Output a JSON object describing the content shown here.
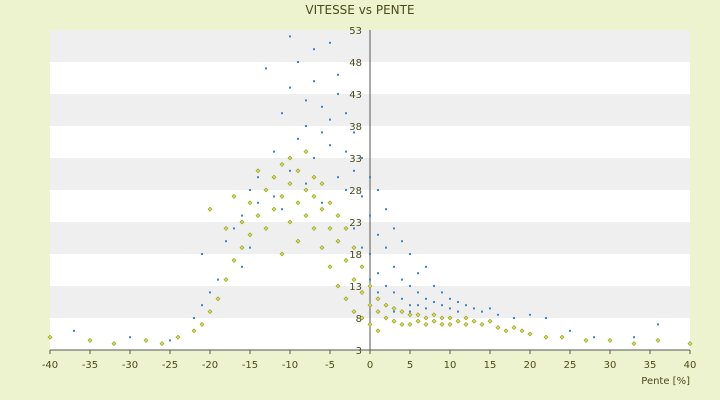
{
  "chart_data": {
    "type": "scatter",
    "title": "VITESSE vs PENTE",
    "xlabel": "Pente [%]",
    "ylabel": "",
    "xlim": [
      -40,
      40
    ],
    "ylim": [
      3,
      53
    ],
    "x_ticks": [
      -40,
      -35,
      -30,
      -25,
      -20,
      -15,
      -10,
      -5,
      0,
      5,
      10,
      15,
      20,
      25,
      30,
      35,
      40
    ],
    "y_ticks": [
      3,
      8,
      13,
      18,
      23,
      28,
      33,
      38,
      43,
      48,
      53
    ],
    "grid": "horizontal bands",
    "legend": "none",
    "series": [
      {
        "color": "#3b86c8",
        "marker": "dot",
        "points": [
          [
            -37,
            6
          ],
          [
            -30,
            5
          ],
          [
            -25,
            4.5
          ],
          [
            -22,
            8
          ],
          [
            -21,
            10
          ],
          [
            -21,
            18
          ],
          [
            -20,
            12
          ],
          [
            -19,
            14
          ],
          [
            -18,
            20
          ],
          [
            -17,
            22
          ],
          [
            -16,
            16
          ],
          [
            -16,
            24
          ],
          [
            -15,
            19
          ],
          [
            -15,
            28
          ],
          [
            -14,
            26
          ],
          [
            -14,
            30
          ],
          [
            -13,
            22
          ],
          [
            -13,
            47
          ],
          [
            -12,
            34
          ],
          [
            -12,
            27
          ],
          [
            -11,
            25
          ],
          [
            -11,
            40
          ],
          [
            -10,
            31
          ],
          [
            -10,
            52
          ],
          [
            -10,
            44
          ],
          [
            -9,
            36
          ],
          [
            -9,
            48
          ],
          [
            -8,
            38
          ],
          [
            -8,
            42
          ],
          [
            -8,
            29
          ],
          [
            -7,
            45
          ],
          [
            -7,
            33
          ],
          [
            -7,
            50
          ],
          [
            -6,
            37
          ],
          [
            -6,
            41
          ],
          [
            -6,
            26
          ],
          [
            -5,
            51
          ],
          [
            -5,
            39
          ],
          [
            -5,
            35
          ],
          [
            -4,
            46
          ],
          [
            -4,
            30
          ],
          [
            -4,
            43
          ],
          [
            -3,
            40
          ],
          [
            -3,
            34
          ],
          [
            -3,
            28
          ],
          [
            -2,
            37
          ],
          [
            -2,
            31
          ],
          [
            -2,
            22
          ],
          [
            -1,
            33
          ],
          [
            -1,
            27
          ],
          [
            -1,
            19
          ],
          [
            0,
            30
          ],
          [
            0,
            24
          ],
          [
            0,
            18
          ],
          [
            0,
            14
          ],
          [
            1,
            28
          ],
          [
            1,
            21
          ],
          [
            1,
            15
          ],
          [
            1,
            12
          ],
          [
            2,
            25
          ],
          [
            2,
            19
          ],
          [
            2,
            13
          ],
          [
            2,
            10
          ],
          [
            3,
            22
          ],
          [
            3,
            16
          ],
          [
            3,
            12
          ],
          [
            3,
            9
          ],
          [
            4,
            20
          ],
          [
            4,
            14
          ],
          [
            4,
            11
          ],
          [
            5,
            18
          ],
          [
            5,
            13
          ],
          [
            5,
            10
          ],
          [
            5,
            9
          ],
          [
            6,
            15
          ],
          [
            6,
            12
          ],
          [
            6,
            10
          ],
          [
            7,
            16
          ],
          [
            7,
            11
          ],
          [
            7,
            9.5
          ],
          [
            8,
            13
          ],
          [
            8,
            10.5
          ],
          [
            9,
            12
          ],
          [
            9,
            10
          ],
          [
            10,
            11
          ],
          [
            10,
            9.5
          ],
          [
            11,
            10.5
          ],
          [
            11,
            9
          ],
          [
            12,
            10
          ],
          [
            13,
            9.5
          ],
          [
            14,
            9
          ],
          [
            15,
            9.5
          ],
          [
            16,
            8.5
          ],
          [
            18,
            8
          ],
          [
            20,
            8.5
          ],
          [
            22,
            8
          ],
          [
            25,
            6
          ],
          [
            28,
            5
          ],
          [
            33,
            5
          ],
          [
            36,
            7
          ]
        ]
      },
      {
        "color": "#8c9a10",
        "marker": "diamond",
        "points": [
          [
            -40,
            5
          ],
          [
            -35,
            4.5
          ],
          [
            -32,
            4
          ],
          [
            -28,
            4.5
          ],
          [
            -26,
            4
          ],
          [
            -24,
            5
          ],
          [
            -22,
            6
          ],
          [
            -21,
            7
          ],
          [
            -20,
            9
          ],
          [
            -20,
            25
          ],
          [
            -19,
            11
          ],
          [
            -18,
            14
          ],
          [
            -18,
            22
          ],
          [
            -17,
            17
          ],
          [
            -17,
            27
          ],
          [
            -16,
            19
          ],
          [
            -16,
            23
          ],
          [
            -15,
            21
          ],
          [
            -15,
            26
          ],
          [
            -14,
            24
          ],
          [
            -14,
            31
          ],
          [
            -13,
            28
          ],
          [
            -13,
            22
          ],
          [
            -12,
            30
          ],
          [
            -12,
            25
          ],
          [
            -11,
            32
          ],
          [
            -11,
            27
          ],
          [
            -11,
            18
          ],
          [
            -10,
            29
          ],
          [
            -10,
            33
          ],
          [
            -10,
            23
          ],
          [
            -9,
            31
          ],
          [
            -9,
            26
          ],
          [
            -9,
            20
          ],
          [
            -8,
            28
          ],
          [
            -8,
            24
          ],
          [
            -8,
            34
          ],
          [
            -7,
            27
          ],
          [
            -7,
            22
          ],
          [
            -7,
            30
          ],
          [
            -6,
            25
          ],
          [
            -6,
            29
          ],
          [
            -6,
            19
          ],
          [
            -5,
            26
          ],
          [
            -5,
            22
          ],
          [
            -5,
            16
          ],
          [
            -4,
            24
          ],
          [
            -4,
            20
          ],
          [
            -4,
            13
          ],
          [
            -3,
            22
          ],
          [
            -3,
            17
          ],
          [
            -3,
            11
          ],
          [
            -2,
            19
          ],
          [
            -2,
            14
          ],
          [
            -2,
            9
          ],
          [
            -1,
            16
          ],
          [
            -1,
            12
          ],
          [
            -1,
            8
          ],
          [
            0,
            13
          ],
          [
            0,
            10
          ],
          [
            0,
            7
          ],
          [
            1,
            11
          ],
          [
            1,
            9
          ],
          [
            1,
            6
          ],
          [
            2,
            10
          ],
          [
            2,
            8
          ],
          [
            3,
            9.5
          ],
          [
            3,
            7.5
          ],
          [
            4,
            9
          ],
          [
            4,
            7
          ],
          [
            5,
            8.5
          ],
          [
            5,
            7
          ],
          [
            6,
            8.5
          ],
          [
            6,
            7.5
          ],
          [
            7,
            8
          ],
          [
            7,
            7
          ],
          [
            8,
            8.5
          ],
          [
            8,
            7.5
          ],
          [
            9,
            8
          ],
          [
            9,
            7
          ],
          [
            10,
            8
          ],
          [
            10,
            7
          ],
          [
            11,
            7.5
          ],
          [
            12,
            8
          ],
          [
            12,
            7
          ],
          [
            13,
            7.5
          ],
          [
            14,
            7
          ],
          [
            15,
            7.5
          ],
          [
            16,
            6.5
          ],
          [
            17,
            6
          ],
          [
            18,
            6.5
          ],
          [
            19,
            6
          ],
          [
            20,
            5.5
          ],
          [
            22,
            5
          ],
          [
            24,
            5
          ],
          [
            27,
            4.5
          ],
          [
            30,
            4.5
          ],
          [
            33,
            4
          ],
          [
            36,
            4.5
          ],
          [
            40,
            4
          ]
        ]
      }
    ]
  }
}
